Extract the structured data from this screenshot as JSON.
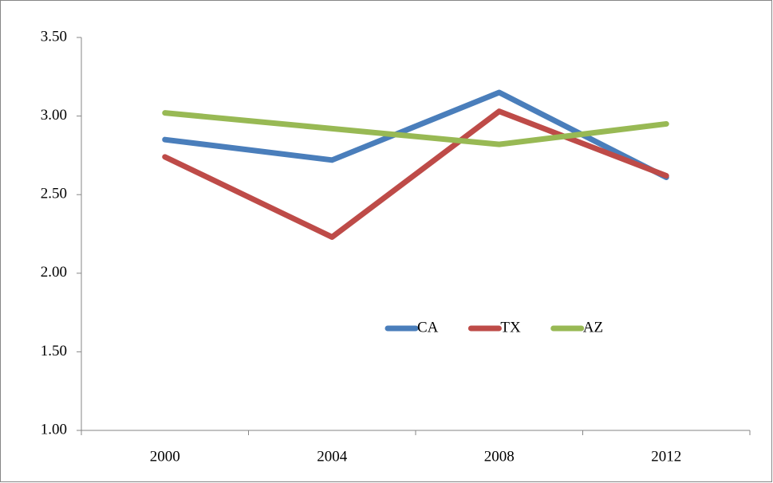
{
  "chart_data": {
    "type": "line",
    "categories": [
      "2000",
      "2004",
      "2008",
      "2012"
    ],
    "series": [
      {
        "name": "CA",
        "color": "#4a7ebb",
        "values": [
          2.85,
          2.72,
          3.15,
          2.61
        ]
      },
      {
        "name": "TX",
        "color": "#be4b48",
        "values": [
          2.74,
          2.23,
          3.03,
          2.62
        ]
      },
      {
        "name": "AZ",
        "color": "#98b954",
        "values": [
          3.02,
          2.92,
          2.82,
          2.95
        ]
      }
    ],
    "ylim": [
      1,
      3.5
    ],
    "yticks": [
      {
        "value": 1,
        "label": "1.00"
      },
      {
        "value": 1.5,
        "label": "1.50"
      },
      {
        "value": 2,
        "label": "2.00"
      },
      {
        "value": 2.5,
        "label": "2.50"
      },
      {
        "value": 3,
        "label": "3.00"
      },
      {
        "value": 3.5,
        "label": "3.50"
      }
    ],
    "grid": false,
    "legend": "center"
  }
}
